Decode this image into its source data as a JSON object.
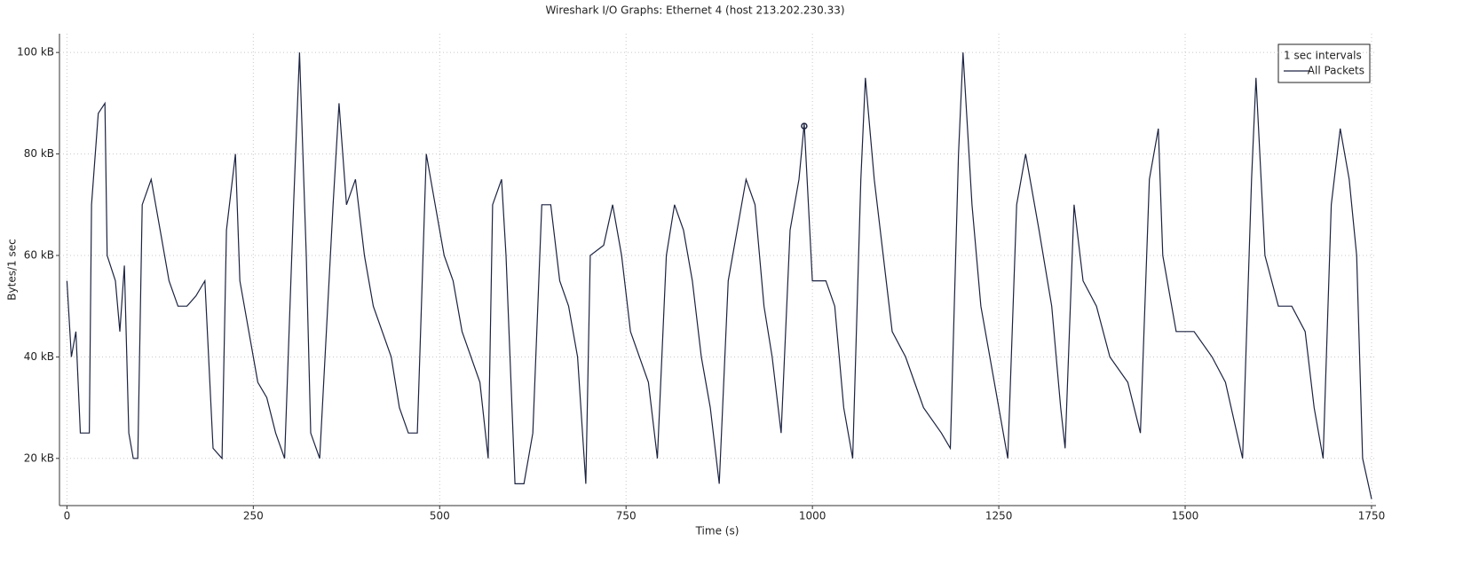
{
  "chart_data": {
    "type": "line",
    "title": "Wireshark I/O Graphs: Ethernet 4 (host 213.202.230.33)",
    "x_label": "Time (s)",
    "y_label": "Bytes/1 sec",
    "legend_title": "1 sec Intervals",
    "legend": "upper right",
    "grid": true,
    "xlim": [
      -10,
      1756
    ],
    "ylim": [
      10.7,
      103.7
    ],
    "xticks": [
      0,
      250,
      500,
      750,
      1000,
      1250,
      1500,
      1750
    ],
    "yticks": [
      {
        "value": 20,
        "label": "20 kB"
      },
      {
        "value": 40,
        "label": "40 kB"
      },
      {
        "value": 60,
        "label": "60 kB"
      },
      {
        "value": 80,
        "label": "80 kB"
      },
      {
        "value": 100,
        "label": "100 kB"
      }
    ],
    "x": [
      0,
      6,
      12,
      18,
      30,
      33,
      42,
      51,
      54,
      65,
      71,
      77,
      83,
      89,
      95,
      101,
      113,
      125,
      137,
      149,
      161,
      173,
      185,
      196,
      208,
      214,
      226,
      232,
      244,
      256,
      268,
      280,
      292,
      304,
      312,
      321,
      327,
      339,
      357,
      365,
      375,
      387,
      399,
      411,
      435,
      446,
      458,
      470,
      482,
      494,
      506,
      518,
      530,
      554,
      565,
      571,
      583,
      589,
      601,
      613,
      625,
      637,
      649,
      661,
      673,
      685,
      696,
      702,
      720,
      732,
      744,
      756,
      768,
      780,
      792,
      804,
      815,
      827,
      839,
      851,
      863,
      875,
      887,
      911,
      923,
      935,
      946,
      958,
      970,
      982,
      989,
      1000,
      1018,
      1030,
      1042,
      1054,
      1065,
      1071,
      1083,
      1095,
      1107,
      1125,
      1137,
      1149,
      1173,
      1185,
      1196,
      1202,
      1214,
      1226,
      1238,
      1250,
      1262,
      1274,
      1286,
      1304,
      1321,
      1333,
      1339,
      1351,
      1363,
      1381,
      1399,
      1423,
      1440,
      1452,
      1464,
      1470,
      1488,
      1512,
      1536,
      1554,
      1577,
      1589,
      1595,
      1607,
      1625,
      1643,
      1661,
      1673,
      1685,
      1696,
      1708,
      1720,
      1730,
      1738,
      1750
    ],
    "series": [
      {
        "name": "All Packets",
        "color": "#1c2341",
        "values": [
          55,
          40,
          45,
          25,
          25,
          70,
          88,
          90,
          60,
          55,
          45,
          58,
          25,
          20,
          20,
          70,
          75,
          65,
          55,
          50,
          50,
          52,
          55,
          22,
          20,
          65,
          80,
          55,
          45,
          35,
          32,
          25,
          20,
          70,
          100,
          60,
          25,
          20,
          70,
          90,
          70,
          75,
          60,
          50,
          40,
          30,
          25,
          25,
          80,
          70,
          60,
          55,
          45,
          35,
          20,
          70,
          75,
          60,
          15,
          15,
          25,
          70,
          70,
          55,
          50,
          40,
          15,
          60,
          62,
          70,
          60,
          45,
          40,
          35,
          20,
          60,
          70,
          65,
          55,
          40,
          30,
          15,
          55,
          75,
          70,
          50,
          40,
          25,
          65,
          75,
          86,
          55,
          55,
          50,
          30,
          20,
          75,
          95,
          75,
          60,
          45,
          40,
          35,
          30,
          25,
          22,
          80,
          100,
          70,
          50,
          40,
          30,
          20,
          70,
          80,
          65,
          50,
          30,
          22,
          70,
          55,
          50,
          40,
          35,
          25,
          75,
          85,
          60,
          45,
          45,
          40,
          35,
          20,
          75,
          95,
          60,
          50,
          50,
          45,
          30,
          20,
          70,
          85,
          75,
          60,
          20,
          12
        ]
      }
    ],
    "selected_point": {
      "x": 989,
      "y": 85.5
    }
  }
}
